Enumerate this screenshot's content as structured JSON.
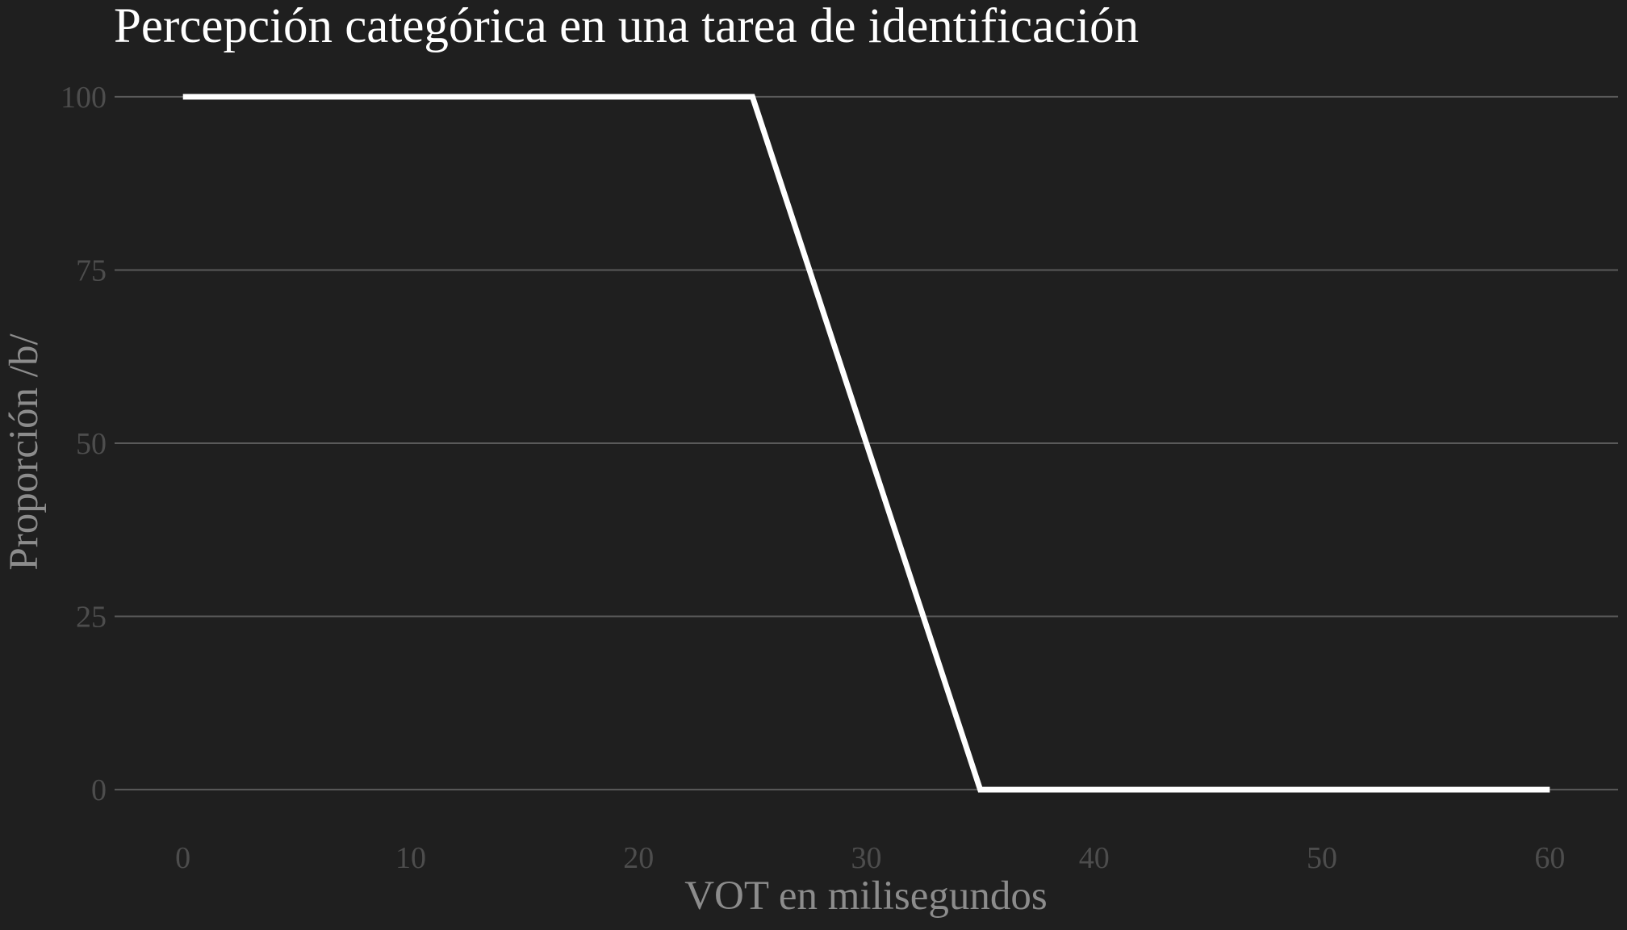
{
  "chart_data": {
    "type": "line",
    "title": "Percepción categórica en una tarea de identificación",
    "xlabel": "VOT en milisegundos",
    "ylabel": "Proporción /b/",
    "xlim": [
      -3,
      63
    ],
    "ylim": [
      -5,
      105
    ],
    "x_ticks": [
      0,
      10,
      20,
      30,
      40,
      50,
      60
    ],
    "y_ticks": [
      0,
      25,
      50,
      75,
      100
    ],
    "x_tick_labels": [
      "0",
      "10",
      "20",
      "30",
      "40",
      "50",
      "60"
    ],
    "y_tick_labels": [
      "0",
      "25",
      "50",
      "75",
      "100"
    ],
    "grid": "horizontal",
    "legend": "none",
    "colors": {
      "background": "#1f1f1f",
      "line": "#ffffff",
      "grid": "#5a5a5a",
      "title": "#ffffff",
      "axis_title": "#8c8c8c",
      "tick_label": "#4d4d4d"
    },
    "series": [
      {
        "x": [
          0,
          25,
          35,
          60
        ],
        "y": [
          100,
          100,
          0,
          0
        ]
      }
    ]
  }
}
